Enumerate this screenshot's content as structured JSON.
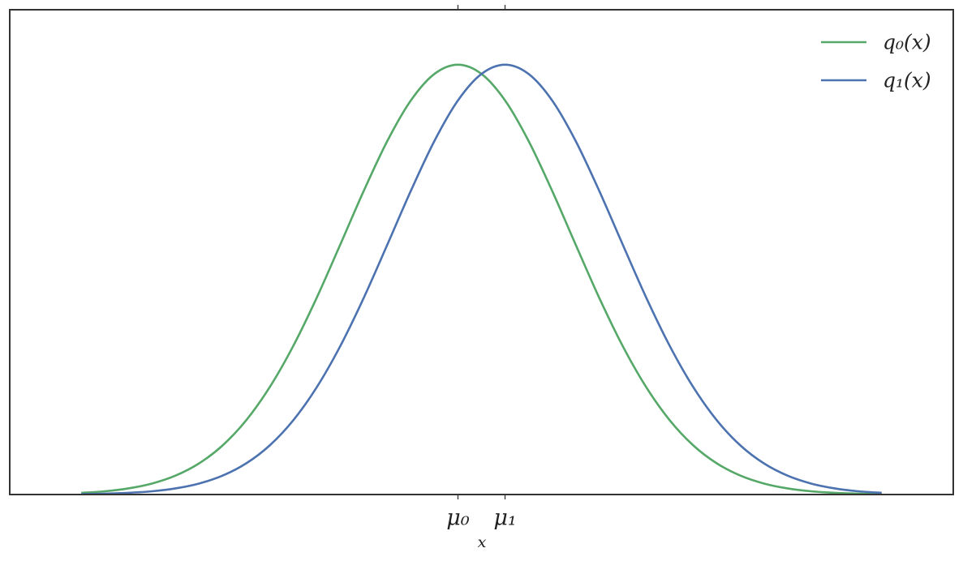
{
  "chart_data": {
    "type": "line",
    "x": [
      -2,
      -1.875,
      -1.75,
      -1.625,
      -1.5,
      -1.375,
      -1.25,
      -1.125,
      -1,
      -0.875,
      -0.75,
      -0.625,
      -0.5,
      -0.375,
      -0.25,
      -0.125,
      0,
      0.125,
      0.25,
      0.375,
      0.5,
      0.625,
      0.75,
      0.875,
      1,
      1.125,
      1.25,
      1.375,
      1.5,
      1.625,
      1.75,
      1.875,
      2,
      2.125,
      2.25
    ],
    "series": [
      {
        "name": "q₀(x)",
        "color": "#55a868",
        "values": [
          0.0026,
          0.005,
          0.0095,
          0.017,
          0.0292,
          0.0481,
          0.0759,
          0.1147,
          0.1659,
          0.2296,
          0.3044,
          0.3866,
          0.4699,
          0.547,
          0.6097,
          0.6507,
          0.665,
          0.6507,
          0.6097,
          0.547,
          0.4699,
          0.3866,
          0.3044,
          0.2296,
          0.1659,
          0.1147,
          0.0759,
          0.0481,
          0.0292,
          0.017,
          0.0095,
          0.005,
          0.0026,
          0.0013,
          0.0006
        ]
      },
      {
        "name": "q₁(x)",
        "color": "#4c72b0",
        "values": [
          0.0006,
          0.0013,
          0.0026,
          0.005,
          0.0095,
          0.017,
          0.0292,
          0.0481,
          0.0759,
          0.1147,
          0.1659,
          0.2296,
          0.3044,
          0.3866,
          0.4699,
          0.547,
          0.6097,
          0.6507,
          0.665,
          0.6507,
          0.6097,
          0.547,
          0.4699,
          0.3866,
          0.3044,
          0.2296,
          0.1659,
          0.1147,
          0.0759,
          0.0481,
          0.0292,
          0.017,
          0.0095,
          0.005,
          0.0026
        ]
      }
    ],
    "x_label": "x",
    "xlim": [
      -2.38,
      2.63
    ],
    "ylim": [
      0,
      0.75
    ],
    "xticks": [
      {
        "value": 0,
        "label": "μ₀"
      },
      {
        "value": 0.25,
        "label": "μ₁"
      }
    ],
    "legend": "upper right",
    "grid": false
  }
}
